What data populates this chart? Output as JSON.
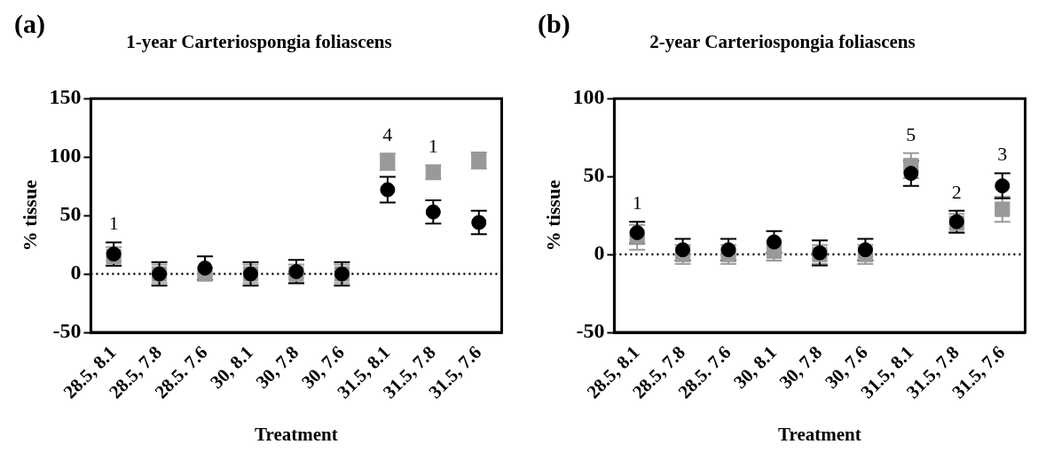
{
  "chart_data": [
    {
      "type": "scatter",
      "title": "1-year Carteriospongia foliascens",
      "xlabel": "Treatment",
      "ylabel": "% tissue",
      "categories": [
        "28.5, 8.1",
        "28.5, 7.8",
        "28.5. 7.6",
        "30, 8.1",
        "30, 7.8",
        "30, 7.6",
        "31.5, 8.1",
        "31.5, 7.8",
        "31.5, 7.6"
      ],
      "series": [
        {
          "color": "#999999",
          "marker": "square",
          "values": [
            15,
            0,
            0,
            0,
            0,
            0,
            96,
            87,
            97
          ],
          "errors": [
            8,
            8,
            5,
            8,
            8,
            8,
            7,
            6,
            7
          ]
        },
        {
          "color": "#000000",
          "marker": "circle",
          "values": [
            17,
            0,
            5,
            0,
            2,
            0,
            72,
            53,
            44
          ],
          "errors": [
            10,
            10,
            10,
            10,
            10,
            10,
            11,
            10,
            10
          ]
        }
      ],
      "ylim": [
        -50,
        150
      ],
      "yticks": [
        -50,
        0,
        50,
        100,
        150
      ],
      "grid": false,
      "legend": false,
      "ref_lines": [
        {
          "axis": "y",
          "value": 0,
          "line_style": "dotted",
          "color": "#000000"
        }
      ],
      "annotations": [
        "(a)",
        {
          "text": "1",
          "x": "28.5, 8.1",
          "y": 17
        },
        {
          "text": "4",
          "x": "31.5, 8.1",
          "y": 96
        },
        {
          "text": "1",
          "x": "31.5, 7.8",
          "y": 87
        }
      ]
    },
    {
      "type": "scatter",
      "title": "2-year Carteriospongia foliascens",
      "xlabel": "Treatment",
      "ylabel": "% tissue",
      "categories": [
        "28.5, 8.1",
        "28.5, 7.8",
        "28.5. 7.6",
        "30, 8.1",
        "30, 7.8",
        "30, 7.6",
        "31.5, 8.1",
        "31.5, 7.8",
        "31.5, 7.6"
      ],
      "series": [
        {
          "color": "#999999",
          "marker": "square",
          "values": [
            11,
            0,
            0,
            2,
            0,
            0,
            57,
            20,
            29
          ],
          "errors": [
            8,
            6,
            6,
            6,
            6,
            6,
            8,
            6,
            8
          ]
        },
        {
          "color": "#000000",
          "marker": "circle",
          "values": [
            14,
            3,
            3,
            8,
            1,
            3,
            52,
            21,
            44
          ],
          "errors": [
            7,
            7,
            7,
            7,
            8,
            7,
            8,
            7,
            8
          ]
        }
      ],
      "ylim": [
        -50,
        100
      ],
      "yticks": [
        -50,
        0,
        50,
        100
      ],
      "grid": false,
      "legend": false,
      "ref_lines": [
        {
          "axis": "y",
          "value": 0,
          "line_style": "dotted",
          "color": "#000000"
        }
      ],
      "annotations": [
        "(b)",
        {
          "text": "1",
          "x": "28.5, 8.1",
          "y": 14
        },
        {
          "text": "5",
          "x": "31.5, 8.1",
          "y": 57
        },
        {
          "text": "2",
          "x": "31.5, 7.8",
          "y": 21
        },
        {
          "text": "3",
          "x": "31.5, 7.6",
          "y": 44
        }
      ]
    }
  ]
}
